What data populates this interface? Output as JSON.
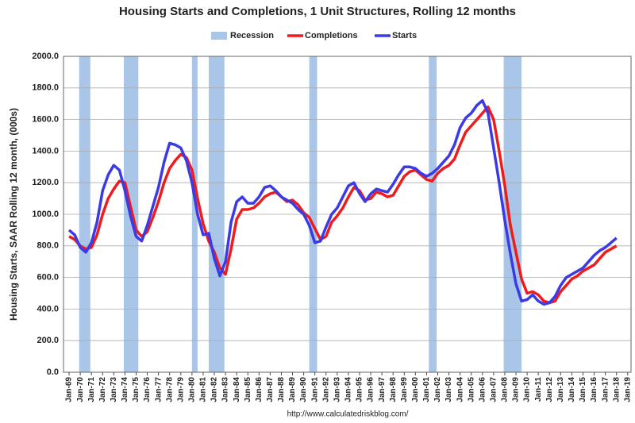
{
  "chart_data": {
    "type": "line",
    "title": "Housing Starts and Completions, 1 Unit Structures, Rolling 12 months",
    "y_label": "Housing Starts, SAAR Rolling 12 month, (000s)",
    "source": "http://www.calculatedriskblog.com/",
    "recession_name": "Recession",
    "recession_color": "#a9c5e8",
    "recessions": [
      {
        "start": 1969.9,
        "end": 1970.9
      },
      {
        "start": 1973.9,
        "end": 1975.2
      },
      {
        "start": 1980.0,
        "end": 1980.5
      },
      {
        "start": 1981.5,
        "end": 1982.9
      },
      {
        "start": 1990.5,
        "end": 1991.2
      },
      {
        "start": 2001.2,
        "end": 2001.9
      },
      {
        "start": 2007.9,
        "end": 2009.5
      }
    ],
    "x": [
      1969,
      1969.5,
      1970,
      1970.5,
      1971,
      1971.5,
      1972,
      1972.5,
      1973,
      1973.5,
      1974,
      1974.5,
      1975,
      1975.5,
      1976,
      1976.5,
      1977,
      1977.5,
      1978,
      1978.5,
      1979,
      1979.5,
      1980,
      1980.5,
      1981,
      1981.5,
      1982,
      1982.5,
      1983,
      1983.5,
      1984,
      1984.5,
      1985,
      1985.5,
      1986,
      1986.5,
      1987,
      1987.5,
      1988,
      1988.5,
      1989,
      1989.5,
      1990,
      1990.5,
      1991,
      1991.5,
      1992,
      1992.5,
      1993,
      1993.5,
      1994,
      1994.5,
      1995,
      1995.5,
      1996,
      1996.5,
      1997,
      1997.5,
      1998,
      1998.5,
      1999,
      1999.5,
      2000,
      2000.5,
      2001,
      2001.5,
      2002,
      2002.5,
      2003,
      2003.5,
      2004,
      2004.5,
      2005,
      2005.5,
      2006,
      2006.5,
      2007,
      2007.5,
      2008,
      2008.5,
      2009,
      2009.5,
      2010,
      2010.5,
      2011,
      2011.5,
      2012,
      2012.5,
      2013,
      2013.5,
      2014,
      2014.5,
      2015,
      2015.5,
      2016,
      2016.5,
      2017,
      2017.5,
      2018
    ],
    "series": [
      {
        "name": "Completions",
        "color": "#ee1c1c",
        "values": [
          860,
          840,
          800,
          780,
          790,
          870,
          1000,
          1100,
          1160,
          1210,
          1200,
          1050,
          900,
          860,
          890,
          980,
          1080,
          1200,
          1290,
          1340,
          1380,
          1360,
          1280,
          1100,
          940,
          830,
          760,
          660,
          620,
          780,
          970,
          1030,
          1030,
          1040,
          1070,
          1110,
          1130,
          1140,
          1110,
          1080,
          1090,
          1060,
          1010,
          980,
          910,
          840,
          860,
          950,
          990,
          1040,
          1110,
          1170,
          1150,
          1090,
          1100,
          1140,
          1130,
          1110,
          1120,
          1180,
          1240,
          1270,
          1280,
          1250,
          1220,
          1210,
          1260,
          1290,
          1310,
          1350,
          1440,
          1520,
          1560,
          1600,
          1640,
          1680,
          1600,
          1400,
          1180,
          930,
          760,
          590,
          500,
          510,
          490,
          450,
          440,
          450,
          510,
          550,
          590,
          610,
          640,
          660,
          680,
          720,
          760,
          780,
          800
        ]
      },
      {
        "name": "Starts",
        "color": "#3a3ae8",
        "values": [
          900,
          870,
          790,
          760,
          820,
          950,
          1150,
          1250,
          1310,
          1280,
          1150,
          990,
          860,
          830,
          930,
          1050,
          1170,
          1330,
          1450,
          1440,
          1420,
          1340,
          1200,
          1000,
          870,
          880,
          720,
          610,
          700,
          950,
          1080,
          1110,
          1070,
          1070,
          1110,
          1170,
          1180,
          1150,
          1110,
          1090,
          1070,
          1030,
          1000,
          930,
          820,
          830,
          920,
          1000,
          1040,
          1110,
          1180,
          1200,
          1130,
          1080,
          1130,
          1160,
          1150,
          1140,
          1190,
          1250,
          1300,
          1300,
          1290,
          1260,
          1240,
          1260,
          1290,
          1330,
          1370,
          1440,
          1550,
          1610,
          1640,
          1690,
          1720,
          1640,
          1420,
          1200,
          960,
          750,
          560,
          450,
          460,
          490,
          450,
          430,
          440,
          480,
          550,
          600,
          620,
          640,
          660,
          700,
          740,
          770,
          790,
          820,
          850
        ]
      }
    ],
    "xlim": [
      1968.5,
      2019.3
    ],
    "xticks": [
      {
        "value": 1969,
        "label": "Jan-69"
      },
      {
        "value": 1970,
        "label": "Jan-70"
      },
      {
        "value": 1971,
        "label": "Jan-71"
      },
      {
        "value": 1972,
        "label": "Jan-72"
      },
      {
        "value": 1973,
        "label": "Jan-73"
      },
      {
        "value": 1974,
        "label": "Jan-74"
      },
      {
        "value": 1975,
        "label": "Jan-75"
      },
      {
        "value": 1976,
        "label": "Jan-76"
      },
      {
        "value": 1977,
        "label": "Jan-77"
      },
      {
        "value": 1978,
        "label": "Jan-78"
      },
      {
        "value": 1979,
        "label": "Jan-79"
      },
      {
        "value": 1980,
        "label": "Jan-80"
      },
      {
        "value": 1981,
        "label": "Jan-81"
      },
      {
        "value": 1982,
        "label": "Jan-82"
      },
      {
        "value": 1983,
        "label": "Jan-83"
      },
      {
        "value": 1984,
        "label": "Jan-84"
      },
      {
        "value": 1985,
        "label": "Jan-85"
      },
      {
        "value": 1986,
        "label": "Jan-86"
      },
      {
        "value": 1987,
        "label": "Jan-87"
      },
      {
        "value": 1988,
        "label": "Jan-88"
      },
      {
        "value": 1989,
        "label": "Jan-89"
      },
      {
        "value": 1990,
        "label": "Jan-90"
      },
      {
        "value": 1991,
        "label": "Jan-91"
      },
      {
        "value": 1992,
        "label": "Jan-92"
      },
      {
        "value": 1993,
        "label": "Jan-93"
      },
      {
        "value": 1994,
        "label": "Jan-94"
      },
      {
        "value": 1995,
        "label": "Jan-95"
      },
      {
        "value": 1996,
        "label": "Jan-96"
      },
      {
        "value": 1997,
        "label": "Jan-97"
      },
      {
        "value": 1998,
        "label": "Jan-98"
      },
      {
        "value": 1999,
        "label": "Jan-99"
      },
      {
        "value": 2000,
        "label": "Jan-00"
      },
      {
        "value": 2001,
        "label": "Jan-01"
      },
      {
        "value": 2002,
        "label": "Jan-02"
      },
      {
        "value": 2003,
        "label": "Jan-03"
      },
      {
        "value": 2004,
        "label": "Jan-04"
      },
      {
        "value": 2005,
        "label": "Jan-05"
      },
      {
        "value": 2006,
        "label": "Jan-06"
      },
      {
        "value": 2007,
        "label": "Jan-07"
      },
      {
        "value": 2008,
        "label": "Jan-08"
      },
      {
        "value": 2009,
        "label": "Jan-09"
      },
      {
        "value": 2010,
        "label": "Jan-10"
      },
      {
        "value": 2011,
        "label": "Jan-11"
      },
      {
        "value": 2012,
        "label": "Jan-12"
      },
      {
        "value": 2013,
        "label": "Jan-13"
      },
      {
        "value": 2014,
        "label": "Jan-14"
      },
      {
        "value": 2015,
        "label": "Jan-15"
      },
      {
        "value": 2016,
        "label": "Jan-16"
      },
      {
        "value": 2017,
        "label": "Jan-17"
      },
      {
        "value": 2018,
        "label": "Jan-18"
      },
      {
        "value": 2019,
        "label": "Jan-19"
      }
    ],
    "ylim": [
      0,
      2000
    ],
    "yticks": [
      {
        "value": 0,
        "label": "0.0"
      },
      {
        "value": 200,
        "label": "200.0"
      },
      {
        "value": 400,
        "label": "400.0"
      },
      {
        "value": 600,
        "label": "600.0"
      },
      {
        "value": 800,
        "label": "800.0"
      },
      {
        "value": 1000,
        "label": "1000.0"
      },
      {
        "value": 1200,
        "label": "1200.0"
      },
      {
        "value": 1400,
        "label": "1400.0"
      },
      {
        "value": 1600,
        "label": "1600.0"
      },
      {
        "value": 1800,
        "label": "1800.0"
      },
      {
        "value": 2000,
        "label": "2000.0"
      }
    ],
    "grid": true
  }
}
